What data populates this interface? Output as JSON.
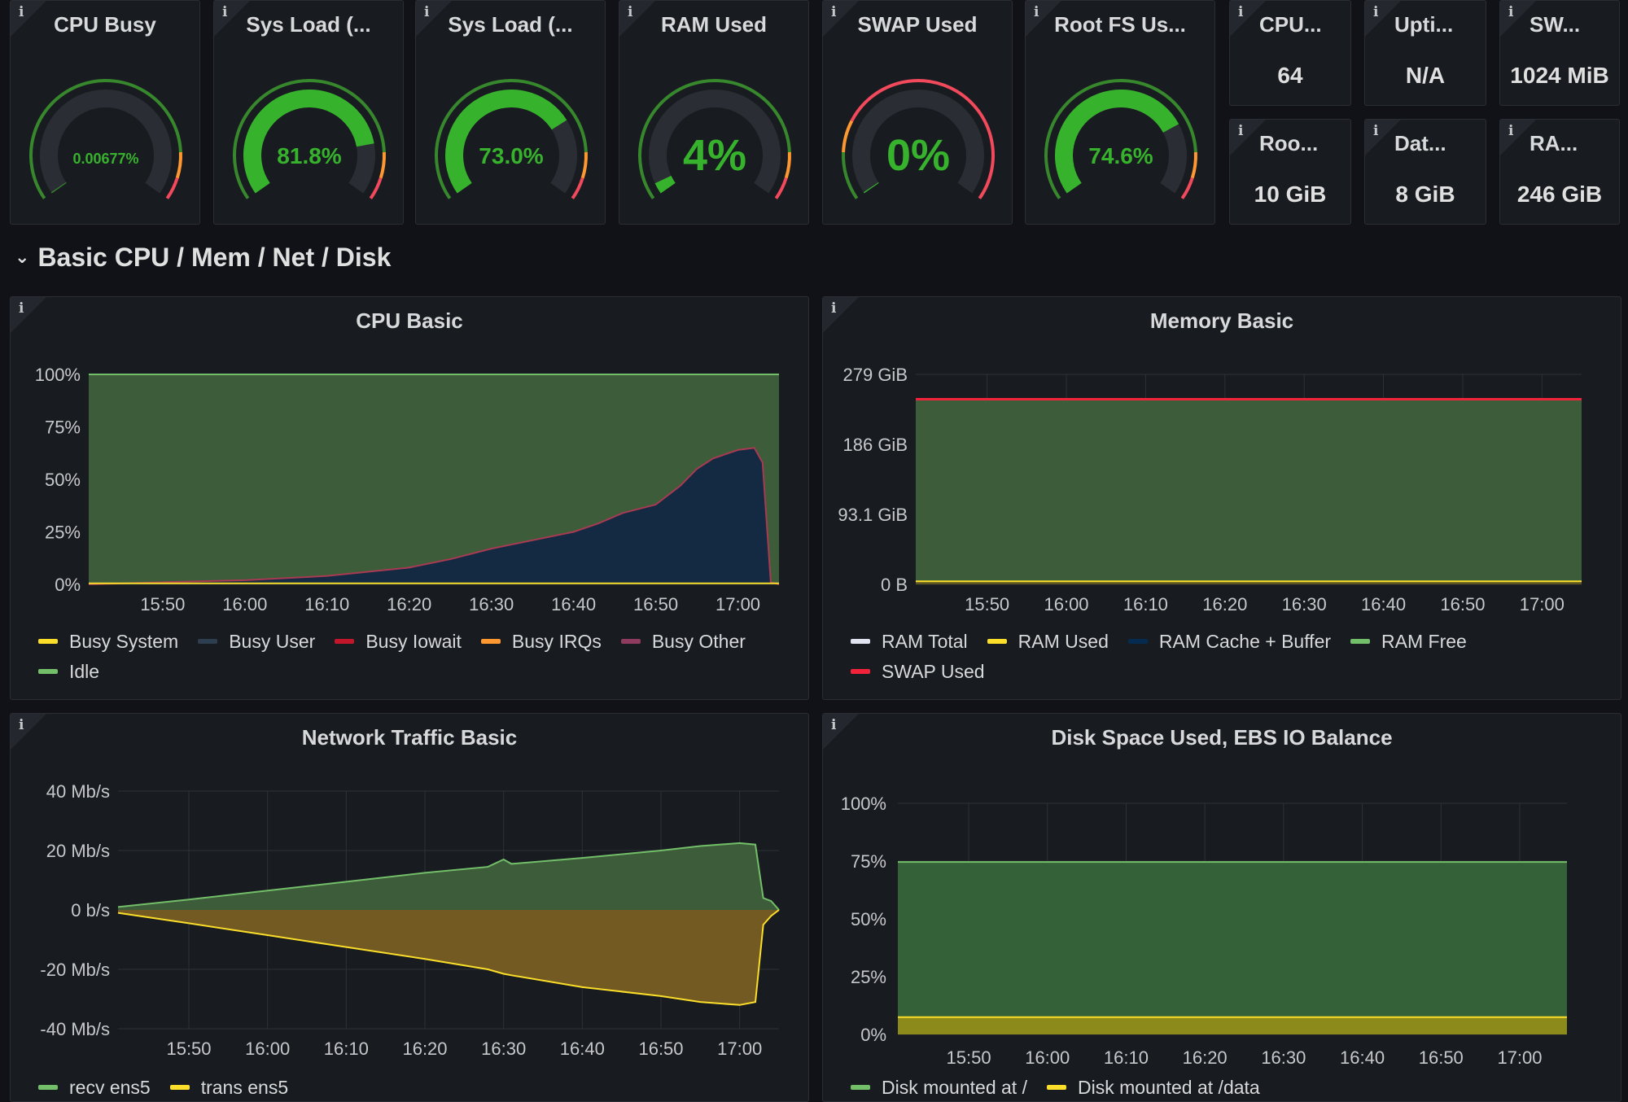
{
  "row": {
    "title": "Basic CPU / Mem / Net / Disk"
  },
  "gauges": [
    {
      "title": "CPU Busy",
      "value_text": "0.00677%",
      "fraction": 6.77e-05,
      "color": "#37872d",
      "text_color": "#37b22d",
      "thresholds": [
        "#37872d",
        "#ff9830",
        "#f2495c"
      ]
    },
    {
      "title": "Sys Load (...",
      "value_text": "81.8%",
      "fraction": 0.818,
      "color": "#37b22d",
      "text_color": "#37b22d",
      "thresholds": [
        "#37872d",
        "#ff9830",
        "#f2495c"
      ]
    },
    {
      "title": "Sys Load (...",
      "value_text": "73.0%",
      "fraction": 0.73,
      "color": "#37b22d",
      "text_color": "#37b22d",
      "thresholds": [
        "#37872d",
        "#ff9830",
        "#f2495c"
      ]
    },
    {
      "title": "RAM Used",
      "value_text": "4%",
      "fraction": 0.04,
      "color": "#37b22d",
      "text_color": "#37b22d",
      "thresholds": [
        "#37872d",
        "#ff9830",
        "#f2495c"
      ]
    },
    {
      "title": "SWAP Used",
      "value_text": "0%",
      "fraction": 0.0,
      "color": "#37b22d",
      "text_color": "#37b22d",
      "thresholds": [
        "#37872d",
        "#ff9830",
        "#f2495c"
      ],
      "swap": true
    },
    {
      "title": "Root FS Us...",
      "value_text": "74.6%",
      "fraction": 0.746,
      "color": "#37b22d",
      "text_color": "#37b22d",
      "thresholds": [
        "#37872d",
        "#ff9830",
        "#f2495c"
      ]
    }
  ],
  "stats": [
    {
      "title": "CPU...",
      "value": "64"
    },
    {
      "title": "Upti...",
      "value": "N/A"
    },
    {
      "title": "SW...",
      "value": "1024 MiB"
    },
    {
      "title": "Roo...",
      "value": "10 GiB"
    },
    {
      "title": "Dat...",
      "value": "8 GiB"
    },
    {
      "title": "RA...",
      "value": "246 GiB"
    }
  ],
  "panels": {
    "cpu": {
      "title": "CPU Basic",
      "legend": [
        {
          "label": "Busy System",
          "color": "#fade2a"
        },
        {
          "label": "Busy User",
          "color": "#2c3e50"
        },
        {
          "label": "Busy Iowait",
          "color": "#c4162a"
        },
        {
          "label": "Busy IRQs",
          "color": "#ff9830"
        },
        {
          "label": "Busy Other",
          "color": "#8f3b5f"
        },
        {
          "label": "Idle",
          "color": "#73bf69"
        }
      ]
    },
    "mem": {
      "title": "Memory Basic",
      "legend": [
        {
          "label": "RAM Total",
          "color": "#e0e4f0"
        },
        {
          "label": "RAM Used",
          "color": "#fade2a"
        },
        {
          "label": "RAM Cache + Buffer",
          "color": "#052b51"
        },
        {
          "label": "RAM Free",
          "color": "#73bf69"
        },
        {
          "label": "SWAP Used",
          "color": "#f2223a"
        }
      ]
    },
    "net": {
      "title": "Network Traffic Basic",
      "legend": [
        {
          "label": "recv ens5",
          "color": "#73bf69"
        },
        {
          "label": "trans ens5",
          "color": "#fade2a"
        }
      ]
    },
    "disk": {
      "title": "Disk Space Used, EBS IO Balance",
      "legend": [
        {
          "label": "Disk mounted at /",
          "color": "#73bf69"
        },
        {
          "label": "Disk mounted at /data",
          "color": "#fade2a"
        }
      ]
    }
  },
  "chart_data": [
    {
      "type": "area",
      "title": "CPU Basic",
      "x_ticks": [
        "15:50",
        "16:00",
        "16:10",
        "16:20",
        "16:30",
        "16:40",
        "16:50",
        "17:00"
      ],
      "y_ticks": [
        "0%",
        "25%",
        "50%",
        "75%",
        "100%"
      ],
      "ylim": [
        0,
        100
      ],
      "x": [
        "15:41",
        "15:50",
        "16:00",
        "16:10",
        "16:15",
        "16:20",
        "16:25",
        "16:30",
        "16:35",
        "16:40",
        "16:43",
        "16:46",
        "16:50",
        "16:53",
        "16:55",
        "16:57",
        "17:00",
        "17:02",
        "17:03",
        "17:04",
        "17:05"
      ],
      "series": [
        {
          "name": "Busy User",
          "color": "#2c3e50",
          "values": [
            0,
            1,
            2,
            4,
            6,
            8,
            12,
            17,
            21,
            25,
            29,
            34,
            38,
            47,
            55,
            60,
            64,
            65,
            58,
            1,
            0
          ]
        },
        {
          "name": "Idle",
          "color": "#73bf69",
          "values": [
            100,
            99,
            98,
            96,
            94,
            92,
            88,
            83,
            79,
            75,
            71,
            66,
            62,
            53,
            45,
            40,
            36,
            35,
            42,
            99,
            100
          ]
        }
      ]
    },
    {
      "type": "area",
      "title": "Memory Basic",
      "x_ticks": [
        "15:50",
        "16:00",
        "16:10",
        "16:20",
        "16:30",
        "16:40",
        "16:50",
        "17:00"
      ],
      "y_ticks": [
        "0 B",
        "93.1 GiB",
        "186 GiB",
        "279 GiB"
      ],
      "ylim": [
        0,
        279
      ],
      "series": [
        {
          "name": "RAM Total",
          "color": "#e0e4f0",
          "values": [
            246,
            246,
            246,
            246,
            246,
            246,
            246,
            246,
            246
          ]
        },
        {
          "name": "RAM Used",
          "color": "#fade2a",
          "values": [
            4,
            4,
            4,
            4,
            4,
            4,
            4,
            4,
            4
          ]
        },
        {
          "name": "RAM Free",
          "color": "#73bf69",
          "values": [
            242,
            242,
            242,
            242,
            242,
            242,
            242,
            242,
            242
          ]
        },
        {
          "name": "SWAP Used",
          "color": "#f2223a",
          "values": [
            0,
            0,
            0,
            0,
            0,
            0,
            0,
            0,
            0
          ]
        }
      ]
    },
    {
      "type": "area",
      "title": "Network Traffic Basic",
      "x_ticks": [
        "15:50",
        "16:00",
        "16:10",
        "16:20",
        "16:30",
        "16:40",
        "16:50",
        "17:00"
      ],
      "y_ticks": [
        "-40 Mb/s",
        "-20 Mb/s",
        "0 b/s",
        "20 Mb/s",
        "40 Mb/s"
      ],
      "ylim": [
        -40,
        40
      ],
      "x": [
        "15:41",
        "15:50",
        "16:00",
        "16:10",
        "16:20",
        "16:28",
        "16:30",
        "16:31",
        "16:40",
        "16:50",
        "16:55",
        "17:00",
        "17:02",
        "17:03",
        "17:04",
        "17:05"
      ],
      "series": [
        {
          "name": "recv ens5",
          "color": "#73bf69",
          "values": [
            1,
            3.5,
            6.5,
            9.5,
            12.5,
            14.5,
            17,
            15.5,
            17.5,
            20,
            21.5,
            22.5,
            22,
            4,
            3,
            0
          ]
        },
        {
          "name": "trans ens5",
          "color": "#fade2a",
          "values": [
            -1,
            -4.5,
            -8.5,
            -12.5,
            -16.5,
            -20,
            -21.5,
            -22,
            -26,
            -29,
            -31,
            -32,
            -31,
            -5,
            -2,
            0
          ]
        }
      ]
    },
    {
      "type": "area",
      "title": "Disk Space Used, EBS IO Balance",
      "x_ticks": [
        "15:50",
        "16:00",
        "16:10",
        "16:20",
        "16:30",
        "16:40",
        "16:50",
        "17:00"
      ],
      "y_ticks": [
        "0%",
        "25%",
        "50%",
        "75%",
        "100%"
      ],
      "ylim": [
        0,
        100
      ],
      "series": [
        {
          "name": "Disk mounted at /",
          "color": "#73bf69",
          "values": [
            74.6,
            74.6,
            74.6,
            74.6,
            74.6,
            74.6,
            74.6,
            74.6
          ]
        },
        {
          "name": "Disk mounted at /data",
          "color": "#fade2a",
          "values": [
            7.5,
            7.5,
            7.5,
            7.5,
            7.5,
            7.5,
            7.5,
            7.5
          ]
        }
      ]
    }
  ]
}
